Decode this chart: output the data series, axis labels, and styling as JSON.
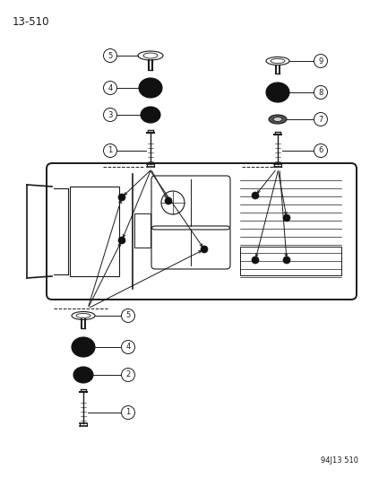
{
  "page_label": "13-510",
  "footer_label": "94J13 510",
  "background_color": "#ffffff",
  "line_color": "#1a1a1a",
  "text_color": "#1a1a1a",
  "fig_width": 4.14,
  "fig_height": 5.33,
  "dpi": 100
}
